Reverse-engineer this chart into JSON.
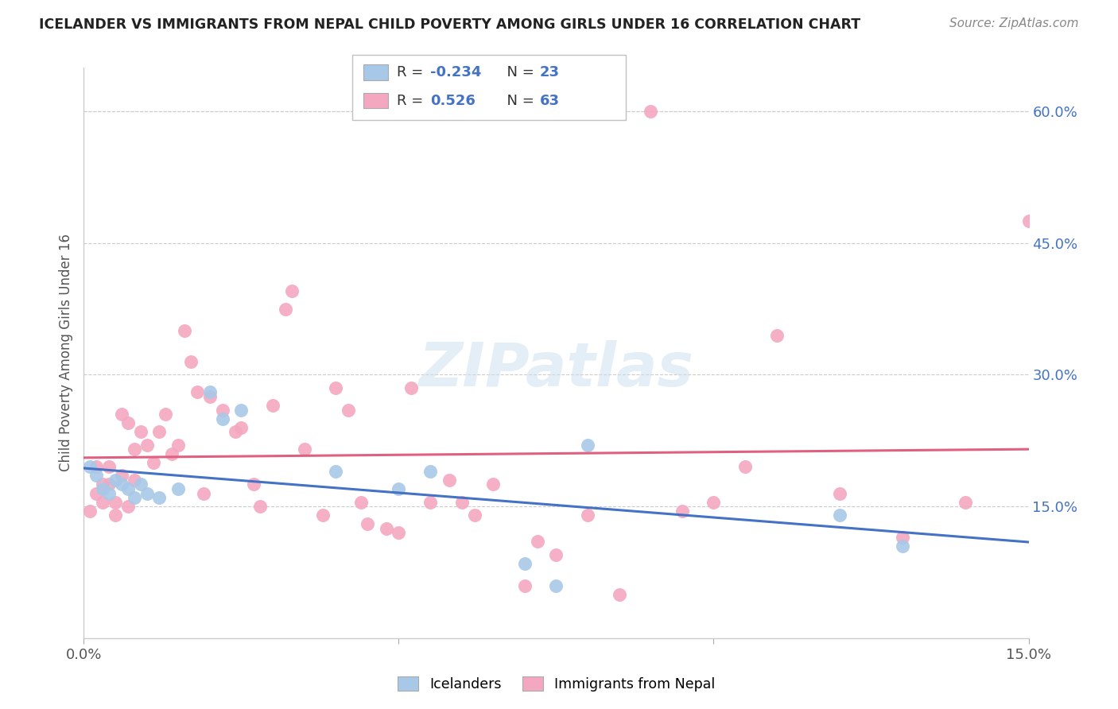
{
  "title": "ICELANDER VS IMMIGRANTS FROM NEPAL CHILD POVERTY AMONG GIRLS UNDER 16 CORRELATION CHART",
  "source": "Source: ZipAtlas.com",
  "ylabel": "Child Poverty Among Girls Under 16",
  "xmin": 0.0,
  "xmax": 0.15,
  "ymin": 0.0,
  "ymax": 0.65,
  "blue_r": -0.234,
  "blue_n": 23,
  "pink_r": 0.526,
  "pink_n": 63,
  "blue_color": "#a8c8e8",
  "pink_color": "#f4a8c0",
  "blue_line_color": "#4472c4",
  "pink_line_color": "#e06080",
  "legend_blue_label": "Icelanders",
  "legend_pink_label": "Immigrants from Nepal",
  "watermark": "ZIPatlas",
  "blue_x": [
    0.001,
    0.002,
    0.003,
    0.004,
    0.005,
    0.006,
    0.007,
    0.008,
    0.009,
    0.01,
    0.012,
    0.015,
    0.02,
    0.022,
    0.025,
    0.04,
    0.05,
    0.055,
    0.07,
    0.075,
    0.08,
    0.12,
    0.13
  ],
  "blue_y": [
    0.195,
    0.185,
    0.17,
    0.165,
    0.18,
    0.175,
    0.17,
    0.16,
    0.175,
    0.165,
    0.16,
    0.17,
    0.28,
    0.25,
    0.26,
    0.19,
    0.17,
    0.19,
    0.085,
    0.06,
    0.22,
    0.14,
    0.105
  ],
  "pink_x": [
    0.001,
    0.002,
    0.002,
    0.003,
    0.003,
    0.004,
    0.004,
    0.005,
    0.005,
    0.006,
    0.006,
    0.007,
    0.007,
    0.008,
    0.008,
    0.009,
    0.01,
    0.011,
    0.012,
    0.013,
    0.014,
    0.015,
    0.016,
    0.017,
    0.018,
    0.019,
    0.02,
    0.022,
    0.024,
    0.025,
    0.027,
    0.028,
    0.03,
    0.032,
    0.033,
    0.035,
    0.038,
    0.04,
    0.042,
    0.044,
    0.045,
    0.048,
    0.05,
    0.052,
    0.055,
    0.058,
    0.06,
    0.062,
    0.065,
    0.07,
    0.072,
    0.075,
    0.08,
    0.085,
    0.09,
    0.095,
    0.1,
    0.105,
    0.11,
    0.12,
    0.13,
    0.14,
    0.15
  ],
  "pink_y": [
    0.145,
    0.195,
    0.165,
    0.175,
    0.155,
    0.195,
    0.175,
    0.155,
    0.14,
    0.255,
    0.185,
    0.245,
    0.15,
    0.215,
    0.18,
    0.235,
    0.22,
    0.2,
    0.235,
    0.255,
    0.21,
    0.22,
    0.35,
    0.315,
    0.28,
    0.165,
    0.275,
    0.26,
    0.235,
    0.24,
    0.175,
    0.15,
    0.265,
    0.375,
    0.395,
    0.215,
    0.14,
    0.285,
    0.26,
    0.155,
    0.13,
    0.125,
    0.12,
    0.285,
    0.155,
    0.18,
    0.155,
    0.14,
    0.175,
    0.06,
    0.11,
    0.095,
    0.14,
    0.05,
    0.6,
    0.145,
    0.155,
    0.195,
    0.345,
    0.165,
    0.115,
    0.155,
    0.475
  ]
}
